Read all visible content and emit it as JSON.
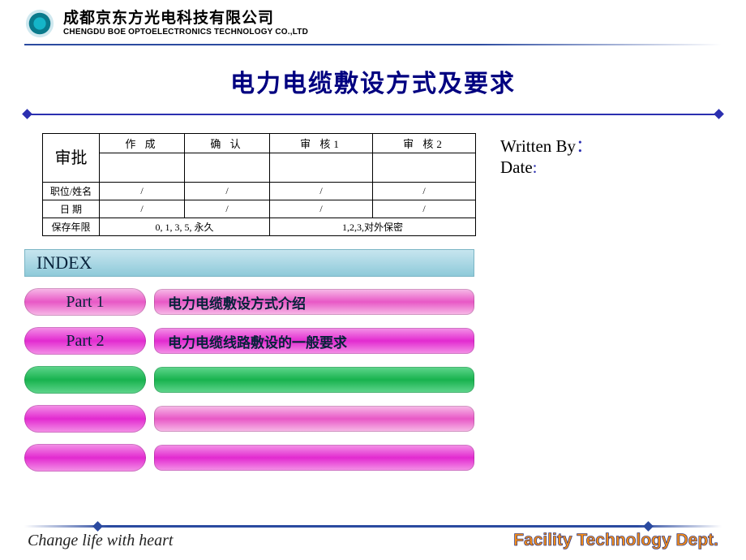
{
  "header": {
    "company_cn": "成都京东方光电科技有限公司",
    "company_en": "CHENGDU BOE OPTOELECTRONICS TECHNOLOGY CO.,LTD",
    "logo_colors": {
      "outer": "#0a7a8c",
      "inner": "#15b5c8",
      "ring": "#cfe8ef"
    }
  },
  "title": "电力电缆敷设方式及要求",
  "approval_table": {
    "row_header": "审批",
    "columns": [
      "作  成",
      "确  认",
      "审  核1",
      "审  核2"
    ],
    "rows": [
      {
        "label": "职位/姓名",
        "cells": [
          "/",
          "/",
          "/",
          "/"
        ]
      },
      {
        "label": "日    期",
        "cells": [
          "/",
          "/",
          "/",
          "/"
        ]
      }
    ],
    "footer_left_label": "保存年限",
    "footer_left_value": "0, 1, 3, 5,  永久",
    "footer_right_value": "1,2,3,对外保密"
  },
  "right": {
    "written_by_label": "Written By",
    "date_label": "Date"
  },
  "index_label": "INDEX",
  "parts": [
    {
      "label": "Part  1",
      "desc": "电力电缆敷设方式介绍",
      "pill_style": "grad-pink",
      "bar_style": "grad-pink"
    },
    {
      "label": "Part  2",
      "desc": "电力电缆线路敷设的一般要求",
      "pill_style": "grad-magenta",
      "bar_style": "grad-magenta"
    },
    {
      "label": "",
      "desc": "",
      "pill_style": "grad-green",
      "bar_style": "grad-green"
    },
    {
      "label": "",
      "desc": "",
      "pill_style": "grad-magenta",
      "bar_style": "grad-pink"
    },
    {
      "label": "",
      "desc": "",
      "pill_style": "grad-magenta",
      "bar_style": "grad-magenta"
    }
  ],
  "footer": {
    "tagline": "Change life with heart",
    "dept": "Facility Technology Dept."
  },
  "colors": {
    "rule_blue": "#2b4aa0",
    "title_blue": "#000080",
    "dept_orange": "#f28c1a"
  }
}
